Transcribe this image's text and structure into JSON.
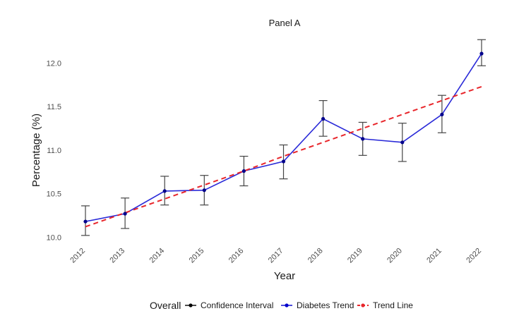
{
  "chart_data": {
    "type": "line",
    "title": "Panel A",
    "xlabel": "Year",
    "ylabel": "Percentage (%)",
    "x": [
      2012,
      2013,
      2014,
      2015,
      2016,
      2017,
      2018,
      2019,
      2020,
      2021,
      2022
    ],
    "x_tick_labels": [
      "2012",
      "2013",
      "2014",
      "2015",
      "2016",
      "2017",
      "2018",
      "2019",
      "2020",
      "2021",
      "2022"
    ],
    "y_ticks": [
      10.0,
      10.5,
      11.0,
      11.5,
      12.0
    ],
    "y_tick_labels": [
      "10.0",
      "10.5",
      "11.0",
      "11.5",
      "12.0"
    ],
    "ylim": [
      9.97,
      12.28
    ],
    "grid": false,
    "legend": {
      "title": "Overall",
      "position": "bottom",
      "entries": [
        {
          "label": "Confidence Interval",
          "color": "#000000"
        },
        {
          "label": "Diabetes Trend",
          "color": "#0000cc"
        },
        {
          "label": "Trend Line",
          "color": "#e8262b"
        }
      ]
    },
    "series": [
      {
        "name": "Diabetes Trend",
        "color": "#2a2ad8",
        "values": [
          10.18,
          10.27,
          10.53,
          10.54,
          10.76,
          10.87,
          11.36,
          11.13,
          11.09,
          11.41,
          12.11
        ],
        "ci_lower": [
          10.02,
          10.1,
          10.37,
          10.37,
          10.59,
          10.67,
          11.16,
          10.94,
          10.87,
          11.2,
          11.97
        ],
        "ci_upper": [
          10.36,
          10.45,
          10.7,
          10.71,
          10.93,
          11.06,
          11.57,
          11.32,
          11.31,
          11.63,
          12.27
        ]
      },
      {
        "name": "Trend Line",
        "color": "#e8262b",
        "dashed": true,
        "values": [
          10.12,
          10.28,
          10.44,
          10.6,
          10.76,
          10.93,
          11.09,
          11.25,
          11.41,
          11.57,
          11.73
        ]
      }
    ]
  }
}
